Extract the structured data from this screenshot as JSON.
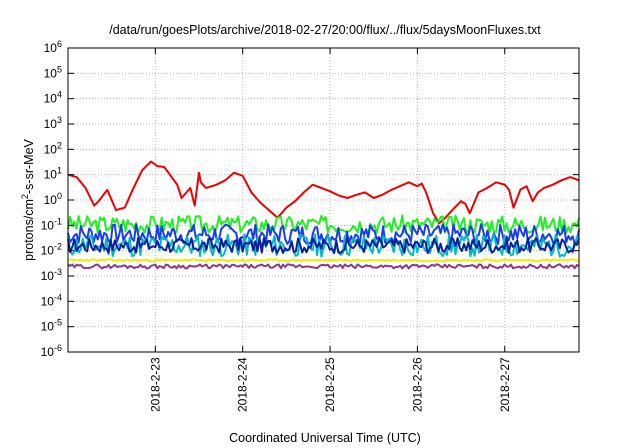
{
  "chart_data": {
    "type": "line",
    "title": "/data/run/goesPlots/archive/2018-02-27/20:00/flux/../flux/5daysMoonFluxes.txt",
    "xlabel": "Coordinated Universal Time (UTC)",
    "ylabel": {
      "base": "protons/cm",
      "sup": "2",
      "rest": "-s-sr-MeV"
    },
    "x_tick_labels": [
      "2018-2-23",
      "2018-2-24",
      "2018-2-25",
      "2018-2-26",
      "2018-2-27"
    ],
    "x_tick_days": [
      1,
      2,
      3,
      4,
      5
    ],
    "x_range_days": [
      0,
      5.85
    ],
    "y_scale": "log",
    "y_tick_exponents": [
      -6,
      -5,
      -4,
      -3,
      -2,
      -1,
      0,
      1,
      2,
      3,
      4,
      5,
      6
    ],
    "y_tick_base": "10",
    "grid": true,
    "colors": {
      "red": "#ee0000",
      "green": "#22ee22",
      "blue": "#1a3cf0",
      "navy": "#0a1f9c",
      "cyan": "#00b8c8",
      "yellow": "#eeee00",
      "purple": "#8b3a8b"
    },
    "series": [
      {
        "color": "red",
        "points": [
          [
            0.0,
            10
          ],
          [
            0.1,
            8
          ],
          [
            0.2,
            3
          ],
          [
            0.3,
            0.6
          ],
          [
            0.35,
            0.9
          ],
          [
            0.45,
            2.5
          ],
          [
            0.55,
            0.4
          ],
          [
            0.65,
            0.5
          ],
          [
            0.75,
            3
          ],
          [
            0.85,
            15
          ],
          [
            0.95,
            33
          ],
          [
            1.02,
            22
          ],
          [
            1.1,
            20
          ],
          [
            1.15,
            12
          ],
          [
            1.25,
            4
          ],
          [
            1.3,
            1.2
          ],
          [
            1.4,
            3
          ],
          [
            1.45,
            0.6
          ],
          [
            1.5,
            12
          ],
          [
            1.52,
            5
          ],
          [
            1.58,
            3
          ],
          [
            1.7,
            4
          ],
          [
            1.8,
            6
          ],
          [
            1.9,
            12
          ],
          [
            2.0,
            9
          ],
          [
            2.1,
            2
          ],
          [
            2.2,
            0.8
          ],
          [
            2.3,
            0.4
          ],
          [
            2.4,
            0.2
          ],
          [
            2.5,
            0.5
          ],
          [
            2.6,
            0.9
          ],
          [
            2.7,
            2
          ],
          [
            2.8,
            4
          ],
          [
            2.9,
            3
          ],
          [
            3.0,
            2.2
          ],
          [
            3.1,
            1.5
          ],
          [
            3.2,
            1.2
          ],
          [
            3.3,
            1.6
          ],
          [
            3.4,
            2
          ],
          [
            3.5,
            1.2
          ],
          [
            3.6,
            1.6
          ],
          [
            3.7,
            2.5
          ],
          [
            3.8,
            3.5
          ],
          [
            3.9,
            5
          ],
          [
            4.0,
            3.5
          ],
          [
            4.05,
            4.5
          ],
          [
            4.1,
            2
          ],
          [
            4.18,
            0.3
          ],
          [
            4.25,
            0.12
          ],
          [
            4.32,
            0.2
          ],
          [
            4.4,
            0.4
          ],
          [
            4.5,
            0.9
          ],
          [
            4.55,
            0.7
          ],
          [
            4.6,
            0.3
          ],
          [
            4.7,
            2
          ],
          [
            4.8,
            3
          ],
          [
            4.9,
            5
          ],
          [
            5.0,
            4
          ],
          [
            5.05,
            2.5
          ],
          [
            5.1,
            0.5
          ],
          [
            5.18,
            2.6
          ],
          [
            5.25,
            3.5
          ],
          [
            5.32,
            0.9
          ],
          [
            5.38,
            2
          ],
          [
            5.45,
            3
          ],
          [
            5.55,
            4
          ],
          [
            5.65,
            6
          ],
          [
            5.75,
            8
          ],
          [
            5.85,
            6
          ]
        ]
      },
      {
        "color": "green",
        "base": 0.11,
        "amp": 0.35,
        "seed": 3
      },
      {
        "color": "blue",
        "base": 0.045,
        "amp": 0.4,
        "seed": 7
      },
      {
        "color": "cyan",
        "base": 0.016,
        "amp": 0.45,
        "seed": 11
      },
      {
        "color": "navy",
        "base": 0.016,
        "amp": 0.3,
        "seed": 17
      },
      {
        "color": "yellow",
        "base": 0.0042,
        "amp": 0.04,
        "seed": 23
      },
      {
        "color": "purple",
        "base": 0.0024,
        "amp": 0.08,
        "seed": 29
      }
    ]
  }
}
